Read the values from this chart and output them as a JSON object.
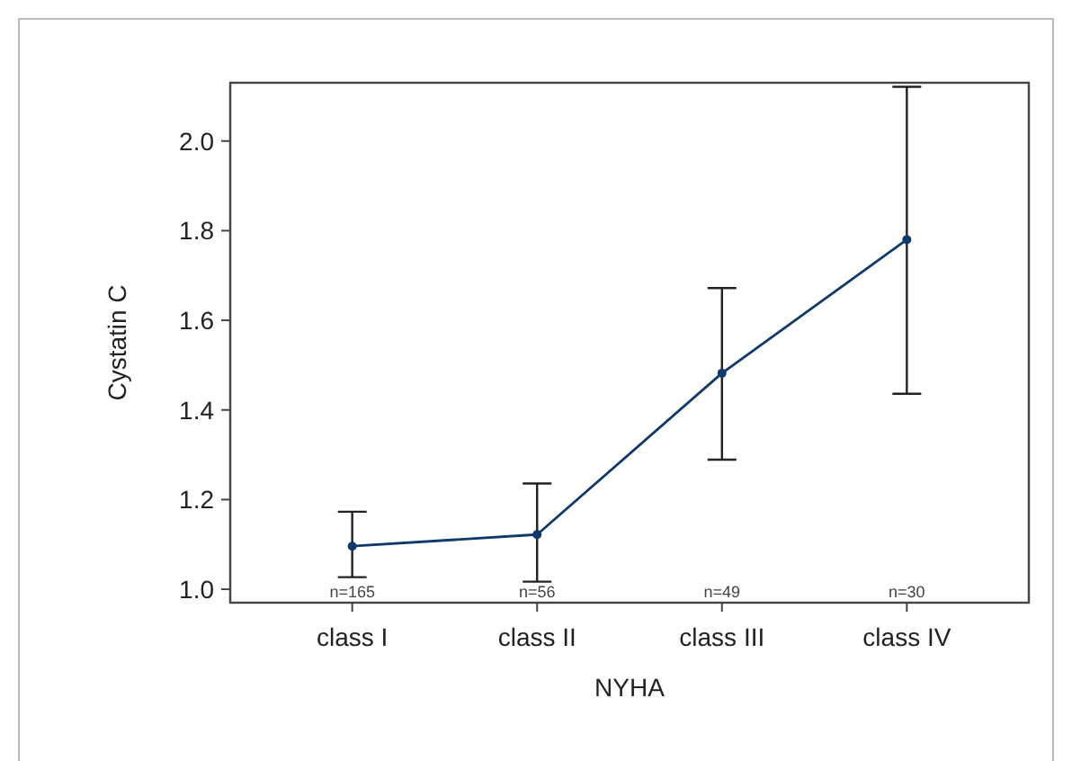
{
  "chart_data": {
    "type": "line",
    "xlabel": "NYHA",
    "ylabel": "Cystatin C",
    "categories": [
      "class I",
      "class II",
      "class III",
      "class IV"
    ],
    "series": [
      {
        "color": "#0d3a6b",
        "values": [
          1.096,
          1.122,
          1.482,
          1.78
        ],
        "errors": [
          [
            1.027,
            1.173
          ],
          [
            1.017,
            1.236
          ],
          [
            1.289,
            1.672
          ],
          [
            1.436,
            2.121
          ]
        ]
      }
    ],
    "ylim": [
      0.97,
      2.13
    ],
    "yticks": [
      {
        "value": 1.0,
        "label": "1.0"
      },
      {
        "value": 1.2,
        "label": "1.2"
      },
      {
        "value": 1.4,
        "label": "1.4"
      },
      {
        "value": 1.6,
        "label": "1.6"
      },
      {
        "value": 1.8,
        "label": "1.8"
      },
      {
        "value": 2.0,
        "label": "2.0"
      }
    ],
    "annotations": [
      "n=165",
      "n=56",
      "n=49",
      "n=30"
    ],
    "marker": "circle",
    "line_style": "solid",
    "grid": false
  }
}
